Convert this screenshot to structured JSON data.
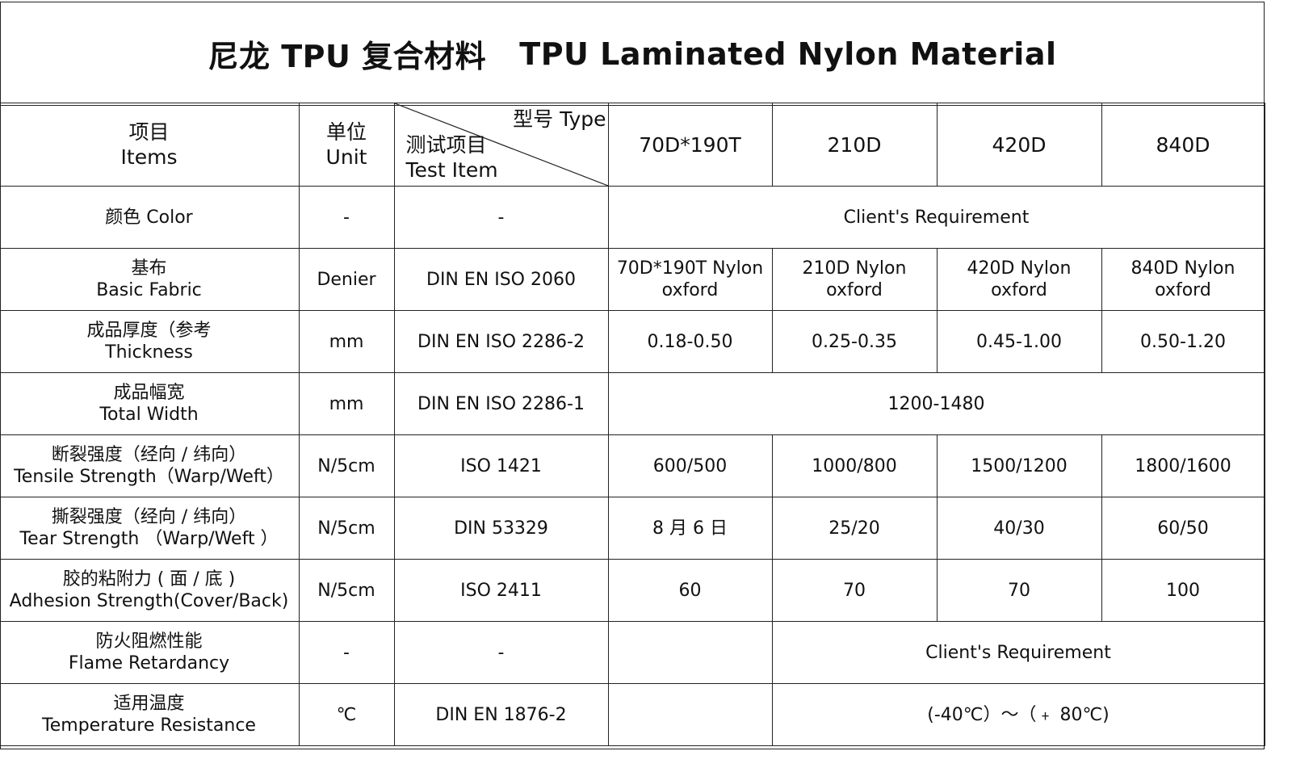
{
  "title": {
    "cn": "尼龙 TPU 复合材料",
    "en": "TPU Laminated Nylon Material"
  },
  "header": {
    "items_cn": "项目",
    "items_en": "Items",
    "unit_cn": "单位",
    "unit_en": "Unit",
    "type_label": "型号 Type",
    "test_cn": "测试项目",
    "test_en": "Test Item",
    "models": [
      "70D*190T",
      "210D",
      "420D",
      "840D"
    ]
  },
  "rows": {
    "color": {
      "name_cn": "颜色 Color",
      "unit": "-",
      "test": "-",
      "value": "Client's Requirement"
    },
    "fabric": {
      "name_cn": "基布",
      "name_en": "Basic Fabric",
      "unit": "Denier",
      "test": "DIN EN ISO 2060",
      "values": [
        {
          "l1": "70D*190T  Nylon",
          "l2": "oxford"
        },
        {
          "l1": "210D  Nylon",
          "l2": "oxford"
        },
        {
          "l1": "420D  Nylon",
          "l2": "oxford"
        },
        {
          "l1": "840D  Nylon",
          "l2": "oxford"
        }
      ]
    },
    "thickness": {
      "name_cn": "成品厚度（参考",
      "name_en": "Thickness",
      "unit": "mm",
      "test": "DIN EN ISO 2286-2",
      "values": [
        "0.18-0.50",
        "0.25-0.35",
        "0.45-1.00",
        "0.50-1.20"
      ]
    },
    "width": {
      "name_cn": "成品幅宽",
      "name_en": "Total Width",
      "unit": "mm",
      "test": "DIN EN ISO 2286-1",
      "value": "1200-1480"
    },
    "tensile": {
      "name_cn": "断裂强度（经向 / 纬向）",
      "name_en": "Tensile Strength（Warp/Weft）",
      "unit": "N/5cm",
      "test": "ISO 1421",
      "values": [
        "600/500",
        "1000/800",
        "1500/1200",
        "1800/1600"
      ]
    },
    "tear": {
      "name_cn": "撕裂强度（经向 / 纬向）",
      "name_en": "Tear Strength （Warp/Weft ）",
      "unit": "N/5cm",
      "test": "DIN 53329",
      "values": [
        "8 月 6 日",
        "25/20",
        "40/30",
        "60/50"
      ]
    },
    "adhesion": {
      "name_cn": "胶的粘附力 ( 面 / 底 )",
      "name_en": "Adhesion Strength(Cover/Back)",
      "unit": "N/5cm",
      "test": "ISO 2411",
      "values": [
        "60",
        "70",
        "70",
        "100"
      ]
    },
    "flame": {
      "name_cn": "防火阻燃性能",
      "name_en": "Flame Retardancy",
      "unit": "-",
      "test": "-",
      "first": "",
      "value": "Client's Requirement"
    },
    "temperature": {
      "name_cn": "适用温度",
      "name_en": "Temperature Resistance",
      "unit": "℃",
      "test": "DIN EN 1876-2",
      "first": "",
      "value": "(-40℃）～（﹢ 80℃)"
    }
  }
}
